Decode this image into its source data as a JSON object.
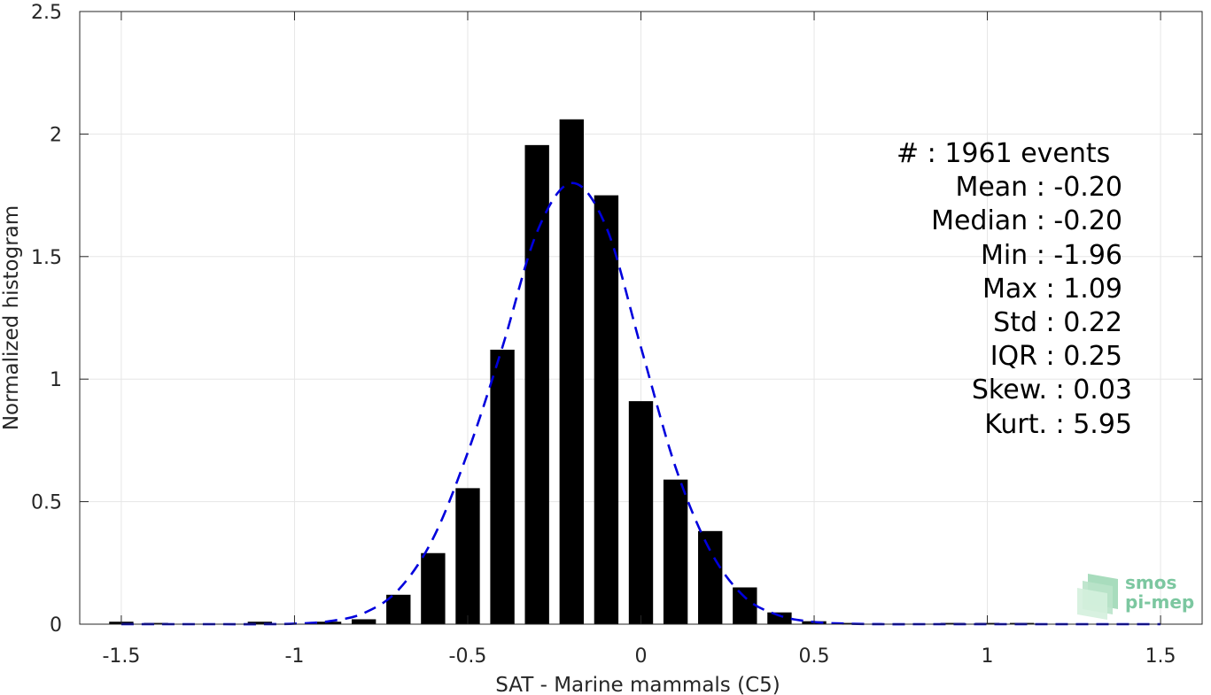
{
  "chart_data": {
    "type": "bar",
    "xlabel": "SAT - Marine mammals (C5)",
    "ylabel": "Normalized histogram",
    "xlim": [
      -1.62,
      1.62
    ],
    "ylim": [
      0,
      2.5
    ],
    "xticks": [
      -1.5,
      -1,
      -0.5,
      0,
      0.5,
      1,
      1.5
    ],
    "xtick_labels": [
      "-1.5",
      "-1",
      "-0.5",
      "0",
      "0.5",
      "1",
      "1.5"
    ],
    "yticks": [
      0,
      0.5,
      1,
      1.5,
      2,
      2.5
    ],
    "ytick_labels": [
      "0",
      "0.5",
      "1",
      "1.5",
      "2",
      "2.5"
    ],
    "grid": true,
    "bar_width": 0.07,
    "bars": {
      "x": [
        -1.5,
        -1.4,
        -1.1,
        -0.9,
        -0.8,
        -0.7,
        -0.6,
        -0.5,
        -0.4,
        -0.3,
        -0.2,
        -0.1,
        0.0,
        0.1,
        0.2,
        0.3,
        0.4,
        0.5,
        0.6,
        0.9,
        1.0,
        1.1
      ],
      "values": [
        0.01,
        0.005,
        0.01,
        0.01,
        0.02,
        0.12,
        0.29,
        0.555,
        1.12,
        1.955,
        2.06,
        1.75,
        0.91,
        0.59,
        0.38,
        0.15,
        0.048,
        0.012,
        0.005,
        0.005,
        0.005,
        0.005
      ],
      "color": "#000000"
    },
    "fit_curve": {
      "style": "dashed",
      "color": "#0000dd",
      "x": [
        -1.5,
        -1.4,
        -1.3,
        -1.2,
        -1.1,
        -1.0,
        -0.9,
        -0.8,
        -0.7,
        -0.6,
        -0.5,
        -0.4,
        -0.3,
        -0.2,
        -0.1,
        0.0,
        0.1,
        0.2,
        0.3,
        0.4,
        0.5,
        0.6,
        0.7,
        0.8,
        0.9,
        1.0,
        1.1,
        1.2,
        1.3,
        1.4,
        1.5
      ],
      "y": [
        0.0,
        0.0,
        0.0,
        0.0,
        0.0,
        0.002,
        0.012,
        0.045,
        0.14,
        0.35,
        0.7,
        1.13,
        1.6,
        1.8,
        1.62,
        1.13,
        0.64,
        0.3,
        0.11,
        0.035,
        0.009,
        0.002,
        0.0,
        0.0,
        0.0,
        0.0,
        0.0,
        0.0,
        0.0,
        0.0,
        0.0
      ]
    }
  },
  "stats": [
    {
      "label": "#  : 1961 events"
    },
    {
      "label": "Mean : -0.20"
    },
    {
      "label": "Median : -0.20"
    },
    {
      "label": "Min : -1.96"
    },
    {
      "label": "Max : 1.09"
    },
    {
      "label": "Std : 0.22"
    },
    {
      "label": "IQR : 0.25"
    },
    {
      "label": "Skew. : 0.03"
    },
    {
      "label": "Kurt. : 5.95"
    }
  ],
  "logo": {
    "line1": "smos",
    "line2": "pi-mep",
    "color": "#7cc7a0"
  }
}
